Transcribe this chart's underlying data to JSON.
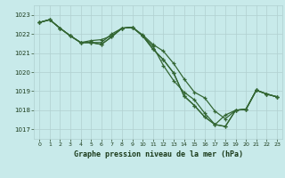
{
  "title": "Graphe pression niveau de la mer (hPa)",
  "background_color": "#c8eaea",
  "grid_color": "#b0d0d0",
  "line_color": "#336633",
  "xlim": [
    -0.5,
    23.5
  ],
  "ylim": [
    1016.5,
    1023.5
  ],
  "yticks": [
    1017,
    1018,
    1019,
    1020,
    1021,
    1022,
    1023
  ],
  "xticks": [
    0,
    1,
    2,
    3,
    4,
    5,
    6,
    7,
    8,
    9,
    10,
    11,
    12,
    13,
    14,
    15,
    16,
    17,
    18,
    19,
    20,
    21,
    22,
    23
  ],
  "series": [
    [
      1022.6,
      1022.75,
      1022.3,
      1021.9,
      1021.55,
      1021.55,
      1021.55,
      1022.0,
      1022.3,
      1022.35,
      1021.95,
      1021.45,
      1021.1,
      1020.45,
      1019.65,
      1018.95,
      1018.65,
      1017.95,
      1017.55,
      1018.0,
      1018.05,
      1019.05,
      1018.85,
      1018.7
    ],
    [
      1022.6,
      1022.75,
      1022.3,
      1021.9,
      1021.55,
      1021.55,
      1021.45,
      1021.85,
      1022.3,
      1022.35,
      1021.9,
      1021.2,
      1020.65,
      1019.95,
      1018.75,
      1018.25,
      1017.65,
      1017.25,
      1017.15,
      1018.0,
      1018.05,
      1019.05,
      1018.85,
      1018.7
    ],
    [
      1022.6,
      1022.75,
      1022.3,
      1021.9,
      1021.55,
      1021.55,
      1021.45,
      1021.85,
      1022.3,
      1022.35,
      1021.9,
      1021.2,
      1020.65,
      1019.95,
      1018.75,
      1018.25,
      1017.65,
      1017.25,
      1017.15,
      1018.0,
      1018.05,
      1019.05,
      1018.85,
      1018.7
    ],
    [
      1022.6,
      1022.75,
      1022.3,
      1021.9,
      1021.55,
      1021.65,
      1021.7,
      1021.9,
      1022.3,
      1022.35,
      1021.9,
      1021.35,
      1020.35,
      1019.55,
      1018.95,
      1018.55,
      1017.85,
      1017.25,
      1017.75,
      1018.0,
      1018.05,
      1019.05,
      1018.85,
      1018.7
    ]
  ]
}
